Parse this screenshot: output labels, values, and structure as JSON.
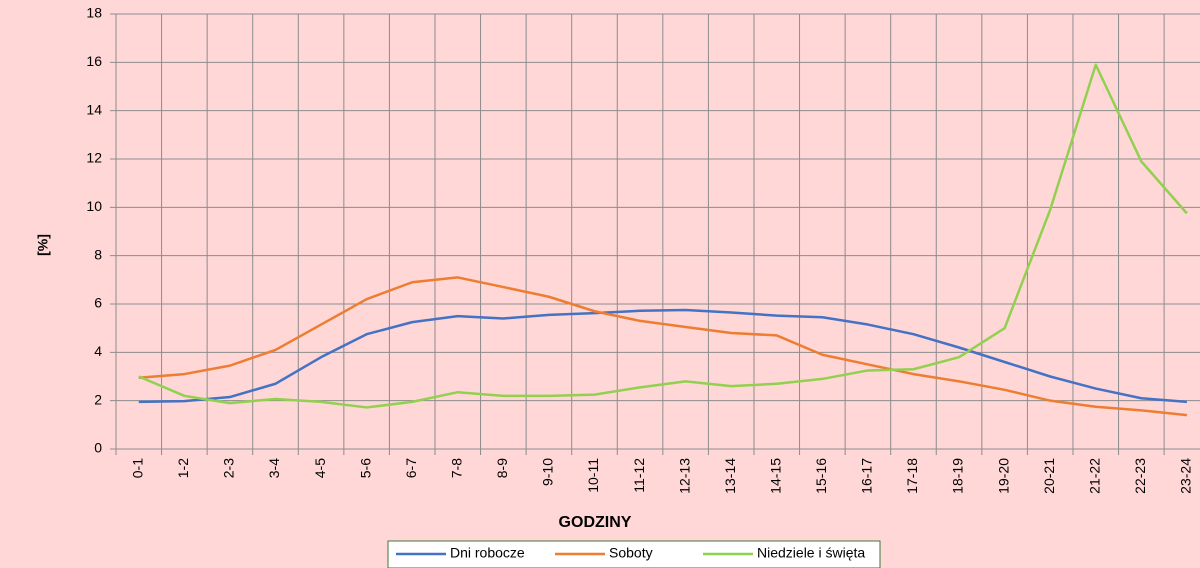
{
  "chart_data": {
    "type": "line",
    "x_label": "GODZINY",
    "y_label": "[%]",
    "categories": [
      "0-1",
      "1-2",
      "2-3",
      "3-4",
      "4-5",
      "5-6",
      "6-7",
      "7-8",
      "8-9",
      "9-10",
      "10-11",
      "11-12",
      "12-13",
      "13-14",
      "14-15",
      "15-16",
      "16-17",
      "17-18",
      "18-19",
      "19-20",
      "20-21",
      "21-22",
      "22-23",
      "23-24"
    ],
    "series": [
      {
        "name": "Dni robocze",
        "color": "#4472c4",
        "values": [
          1.95,
          1.98,
          2.15,
          2.7,
          3.8,
          4.75,
          5.25,
          5.5,
          5.4,
          5.55,
          5.62,
          5.72,
          5.75,
          5.65,
          5.52,
          5.45,
          5.15,
          4.75,
          4.2,
          3.6,
          3.0,
          2.5,
          2.1,
          1.95
        ]
      },
      {
        "name": "Soboty",
        "color": "#ed7d31",
        "values": [
          2.95,
          3.1,
          3.45,
          4.1,
          5.15,
          6.2,
          6.9,
          7.1,
          6.7,
          6.3,
          5.7,
          5.3,
          5.05,
          4.8,
          4.7,
          3.9,
          3.5,
          3.1,
          2.8,
          2.45,
          2.0,
          1.75,
          1.6,
          1.4
        ]
      },
      {
        "name": "Niedziele i święta",
        "color": "#92d050",
        "values": [
          3.0,
          2.2,
          1.9,
          2.07,
          1.95,
          1.72,
          1.95,
          2.35,
          2.2,
          2.2,
          2.25,
          2.55,
          2.8,
          2.6,
          2.7,
          2.9,
          3.25,
          3.3,
          3.8,
          5.0,
          9.9,
          15.9,
          11.9,
          9.75
        ]
      }
    ],
    "ylim": [
      0,
      18
    ],
    "yticks": [
      0,
      2,
      4,
      6,
      8,
      10,
      12,
      14,
      16,
      18
    ],
    "grid": true,
    "legend": "bottom"
  }
}
